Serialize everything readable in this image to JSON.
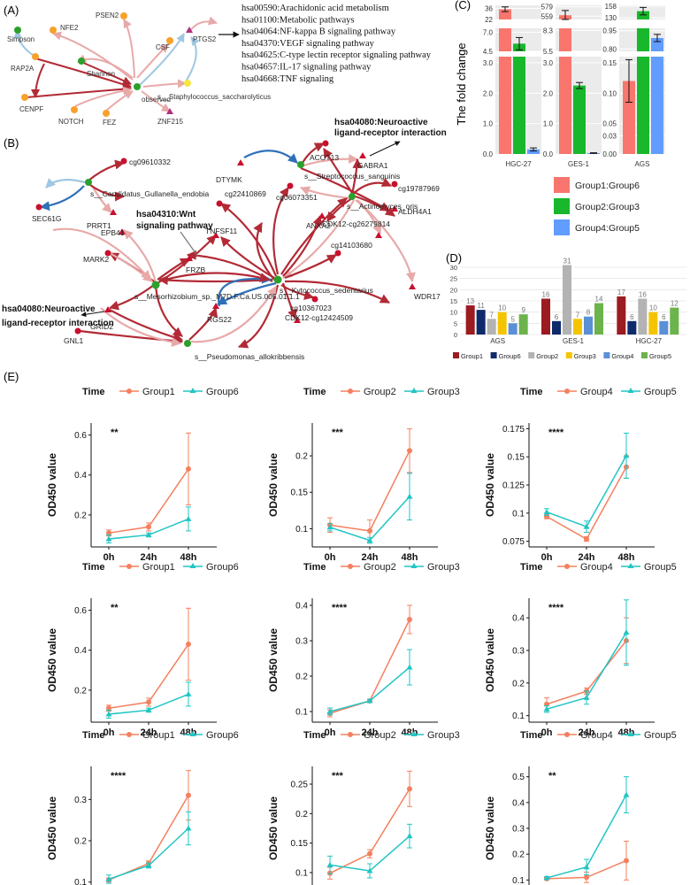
{
  "panel_labels": {
    "a": "(A)",
    "b": "(B)",
    "c": "(C)",
    "d": "(D)",
    "e": "(E)"
  },
  "colors": {
    "red_edge": "#b22a35",
    "pink_edge": "#e8a9a9",
    "blue_edge": "#9fc7e2",
    "blue_strong": "#2f70b8",
    "green_node": "#2ca02c",
    "red_node": "#c8102e",
    "orange_node": "#f7a12b",
    "magenta_node": "#b0307a",
    "yellow_node": "#f5e642",
    "group1": "#f8766d",
    "group3": "#19b72b",
    "group5": "#619cff",
    "d_group1": "#9b1b20",
    "d_group6": "#0e2a6b",
    "d_group2": "#b3b3b3",
    "d_group3": "#f5c400",
    "d_group4": "#5b8fd6",
    "d_group5": "#6bb34a",
    "e_red": "#f4805f",
    "e_cyan": "#21c5c4"
  },
  "panel_a": {
    "nodes": {
      "simpson": "Simpson",
      "nfe2": "NFE2",
      "psen2": "PSEN2",
      "csf": "CSF",
      "ptgs2": "PTGS2",
      "rap2a": "RAP2A",
      "shannon": "Shannon",
      "observed": "observed",
      "staph": "s__Staphylococcus_saccharolyticus",
      "cenpf": "CENPF",
      "fez": "FEZ",
      "notch": "NOTCH",
      "znf215": "ZNF215"
    },
    "pathways": [
      "hsa00590:Arachidonic acid metabolism",
      "hsa01100:Metabolic pathways",
      "hsa04064:NF-kappa B signaling pathway",
      "hsa04370:VEGF signaling pathway",
      "hsa04625:C-type lectin receptor signaling pathway",
      "hsa04657:IL-17 signaling pathway",
      "hsa04668:TNF signaling"
    ]
  },
  "panel_b": {
    "nodes": {
      "cg09610332": "cg09610332",
      "gullanella": "s__Candidatus_Gullanella_endobia",
      "sec61g": "SEC61G",
      "prrt1": "PRRT1",
      "dtymk": "DTYMK",
      "strep": "s__Streptococcus_sanguinis",
      "acot13": "ACOT13",
      "gabra1": "GABRA1",
      "aldh4a1": "ALDH4A1",
      "cg19787969": "cg19787969",
      "actino": "s__Actinomyces_oris",
      "cg06073351": "cg06073351",
      "cg22410869": "cg22410869",
      "anxa2": "ANXA2",
      "cdk12a": "CDK12-cg26279814",
      "cg14103680": "cg14103680",
      "tnfsf11": "TNFSF11",
      "epb41": "EPB41",
      "mark2": "MARK2",
      "frzb": "FRZB",
      "kyto": "s__Kytococcus_sedentarius",
      "meso": "s__Mesorhizobium_sp._M7D.F.Ca.US.005.01.1.1",
      "grid2": "GRID2",
      "rgs22": "RGS22",
      "cg10367023": "cg10367023",
      "cdk12b": "CDK12-cg12424509",
      "wdr17": "WDR17",
      "gnl1": "GNL1",
      "pseudo": "s__Pseudomonas_allokribbensis"
    },
    "annotations": {
      "neuro_top_1": "hsa04080:Neuroactive",
      "neuro_top_2": "ligand-receptor interaction",
      "wnt_1": "hsa04310:Wnt",
      "wnt_2": "signaling pathway",
      "neuro_left_1": "hsa04080:Neuroactive",
      "neuro_left_2": "ligand-receptor interaction"
    }
  },
  "chart_data": [
    {
      "id": "C",
      "type": "bar",
      "ylabel": "The fold change",
      "categories": [
        "HGC-27",
        "GES-1",
        "AGS"
      ],
      "series": [
        {
          "name": "Group1:Group6",
          "values": [
            35,
            561,
            0.12
          ],
          "errors": [
            3,
            10,
            0.035
          ]
        },
        {
          "name": "Group2:Group3",
          "values": [
            5.5,
            2.25,
            146
          ],
          "errors": [
            0.8,
            0.1,
            9
          ]
        },
        {
          "name": "Group4:Group5",
          "values": [
            0.15,
            0.03,
            0.89
          ],
          "errors": [
            0.05,
            0.01,
            0.03
          ]
        }
      ],
      "y_break_ticks": {
        "HGC-27": {
          "top": [
            "36",
            "22"
          ],
          "mid": [
            "7.0",
            "4.5"
          ],
          "low": [
            "3.0",
            "2.0",
            "1.0",
            "0.0"
          ]
        },
        "GES-1": {
          "top": [
            "579",
            "559"
          ],
          "mid": [
            "8.3",
            "5.5"
          ],
          "low": [
            "3.0",
            "2.0",
            "1.0",
            "0.0"
          ]
        },
        "AGS": {
          "top": [
            "158",
            "130"
          ],
          "mid": [
            "0.95",
            "0.80"
          ],
          "low": [
            "0.15",
            "0.10",
            "0.05",
            "0.03",
            "0.00"
          ]
        }
      }
    },
    {
      "id": "D",
      "type": "bar",
      "categories": [
        "AGS",
        "GES-1",
        "HGC-27"
      ],
      "ylim": [
        0,
        30
      ],
      "yticks": [
        "0",
        "5",
        "10",
        "15",
        "20",
        "25",
        "30"
      ],
      "series": [
        {
          "name": "Group1",
          "values": [
            13,
            16,
            17
          ]
        },
        {
          "name": "Group6",
          "values": [
            11,
            6,
            6
          ]
        },
        {
          "name": "Group2",
          "values": [
            7,
            31,
            16
          ]
        },
        {
          "name": "Group3",
          "values": [
            10,
            7,
            10
          ]
        },
        {
          "name": "Group4",
          "values": [
            5,
            8,
            6
          ]
        },
        {
          "name": "Group5",
          "values": [
            9,
            14,
            12
          ]
        }
      ]
    },
    {
      "id": "E",
      "type": "line",
      "x": [
        "0h",
        "24h",
        "48h"
      ],
      "ylabel": "OD450 value",
      "legend_title": "Time",
      "panels": [
        {
          "legend": [
            "Group1",
            "Group6"
          ],
          "sig": "**",
          "ylim": [
            0.04,
            0.66
          ],
          "yticks": [
            0.2,
            0.4,
            0.6
          ],
          "a": [
            0.11,
            0.14,
            0.43
          ],
          "a_err": [
            0.015,
            0.02,
            0.18
          ],
          "b": [
            0.08,
            0.1,
            0.18
          ],
          "b_err": [
            0.02,
            0.01,
            0.06
          ]
        },
        {
          "legend": [
            "Group2",
            "Group3"
          ],
          "sig": "***",
          "ylim": [
            0.075,
            0.245
          ],
          "yticks": [
            0.1,
            0.15,
            0.2
          ],
          "a": [
            0.105,
            0.097,
            0.207
          ],
          "a_err": [
            0.01,
            0.015,
            0.03
          ],
          "b": [
            0.102,
            0.084,
            0.144
          ],
          "b_err": [
            0.005,
            0.004,
            0.032
          ]
        },
        {
          "legend": [
            "Group4",
            "Group5"
          ],
          "sig": "****",
          "ylim": [
            0.07,
            0.18
          ],
          "yticks": [
            0.075,
            0.1,
            0.125,
            0.15,
            0.175
          ],
          "a": [
            0.097,
            0.077,
            0.141
          ],
          "a_err": [
            0.002,
            0.002,
            0.01
          ],
          "b": [
            0.101,
            0.088,
            0.151
          ],
          "b_err": [
            0.003,
            0.005,
            0.02
          ]
        },
        {
          "legend": [
            "Group1",
            "Group6"
          ],
          "sig": "**",
          "ylim": [
            0.04,
            0.66
          ],
          "yticks": [
            0.2,
            0.4,
            0.6
          ],
          "a": [
            0.11,
            0.14,
            0.43
          ],
          "a_err": [
            0.015,
            0.02,
            0.18
          ],
          "b": [
            0.08,
            0.1,
            0.18
          ],
          "b_err": [
            0.02,
            0.01,
            0.06
          ]
        },
        {
          "legend": [
            "Group2",
            "Group3"
          ],
          "sig": "****",
          "ylim": [
            0.07,
            0.42
          ],
          "yticks": [
            0.1,
            0.2,
            0.3,
            0.4
          ],
          "a": [
            0.095,
            0.13,
            0.36
          ],
          "a_err": [
            0.01,
            0.005,
            0.04
          ],
          "b": [
            0.1,
            0.13,
            0.225
          ],
          "b_err": [
            0.01,
            0.005,
            0.05
          ]
        },
        {
          "legend": [
            "Group4",
            "Group5"
          ],
          "sig": "****",
          "ylim": [
            0.08,
            0.46
          ],
          "yticks": [
            0.1,
            0.2,
            0.3,
            0.4
          ],
          "a": [
            0.135,
            0.175,
            0.33
          ],
          "a_err": [
            0.02,
            0.01,
            0.07
          ],
          "b": [
            0.12,
            0.155,
            0.355
          ],
          "b_err": [
            0.01,
            0.02,
            0.1
          ]
        },
        {
          "legend": [
            "Group1",
            "Group6"
          ],
          "sig": "****",
          "ylim": [
            0.08,
            0.38
          ],
          "yticks": [
            0.1,
            0.2,
            0.3
          ],
          "a": [
            0.105,
            0.145,
            0.31
          ],
          "a_err": [
            0.005,
            0.006,
            0.06
          ],
          "b": [
            0.107,
            0.14,
            0.23
          ],
          "b_err": [
            0.01,
            0.006,
            0.04
          ]
        },
        {
          "legend": [
            "Group2",
            "Group3"
          ],
          "sig": "***",
          "ylim": [
            0.07,
            0.28
          ],
          "yticks": [
            0.1,
            0.15,
            0.2,
            0.25
          ],
          "a": [
            0.099,
            0.132,
            0.242
          ],
          "a_err": [
            0.01,
            0.007,
            0.03
          ],
          "b": [
            0.113,
            0.103,
            0.162
          ],
          "b_err": [
            0.015,
            0.012,
            0.02
          ]
        },
        {
          "legend": [
            "Group4",
            "Group5"
          ],
          "sig": "**",
          "ylim": [
            0.06,
            0.54
          ],
          "yticks": [
            0.1,
            0.2,
            0.3,
            0.4,
            0.5
          ],
          "a": [
            0.105,
            0.11,
            0.175
          ],
          "a_err": [
            0.005,
            0.02,
            0.075
          ],
          "b": [
            0.108,
            0.15,
            0.43
          ],
          "b_err": [
            0.005,
            0.03,
            0.07
          ]
        }
      ]
    }
  ]
}
